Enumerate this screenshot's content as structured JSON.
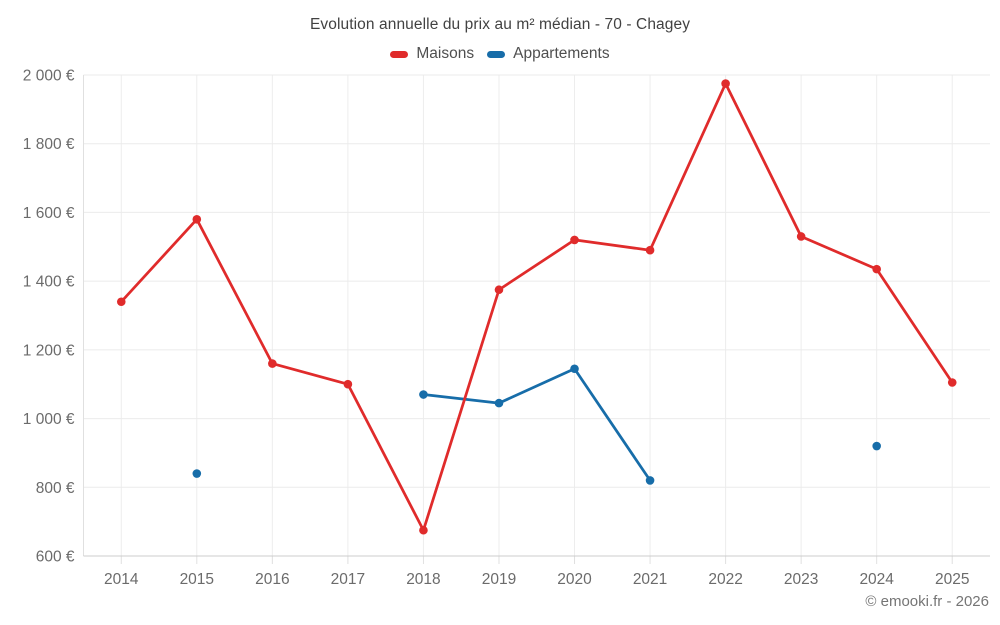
{
  "header": {
    "title": "Evolution annuelle du prix au m² médian - 70 - Chagey"
  },
  "legend": {
    "items": [
      {
        "label": "Maisons",
        "color": "#e02b2b"
      },
      {
        "label": "Appartements",
        "color": "#176da9"
      }
    ]
  },
  "footer": {
    "copyright": "© emooki.fr - 2026"
  },
  "chart_data": {
    "type": "line",
    "title": "Evolution annuelle du prix au m² médian - 70 - Chagey",
    "categories": [
      2014,
      2015,
      2016,
      2017,
      2018,
      2019,
      2020,
      2021,
      2022,
      2023,
      2024,
      2025
    ],
    "series": [
      {
        "name": "Maisons",
        "color": "#e02b2b",
        "values": [
          1340,
          1580,
          1160,
          1100,
          675,
          1375,
          1520,
          1490,
          1975,
          1530,
          1435,
          1105
        ]
      },
      {
        "name": "Appartements",
        "color": "#176da9",
        "values": [
          null,
          840,
          null,
          null,
          1070,
          1045,
          1145,
          820,
          null,
          null,
          920,
          null
        ]
      }
    ],
    "xlabel": "",
    "ylabel": "",
    "ylim": [
      600,
      2000
    ],
    "y_ticks": [
      600,
      800,
      1000,
      1200,
      1400,
      1600,
      1800,
      2000
    ],
    "y_tick_labels": [
      "600 €",
      "800 €",
      "1 000 €",
      "1 200 €",
      "1 400 €",
      "1 600 €",
      "1 800 €",
      "2 000 €"
    ],
    "grid": true,
    "legend_position": "top",
    "marker": "circle"
  }
}
